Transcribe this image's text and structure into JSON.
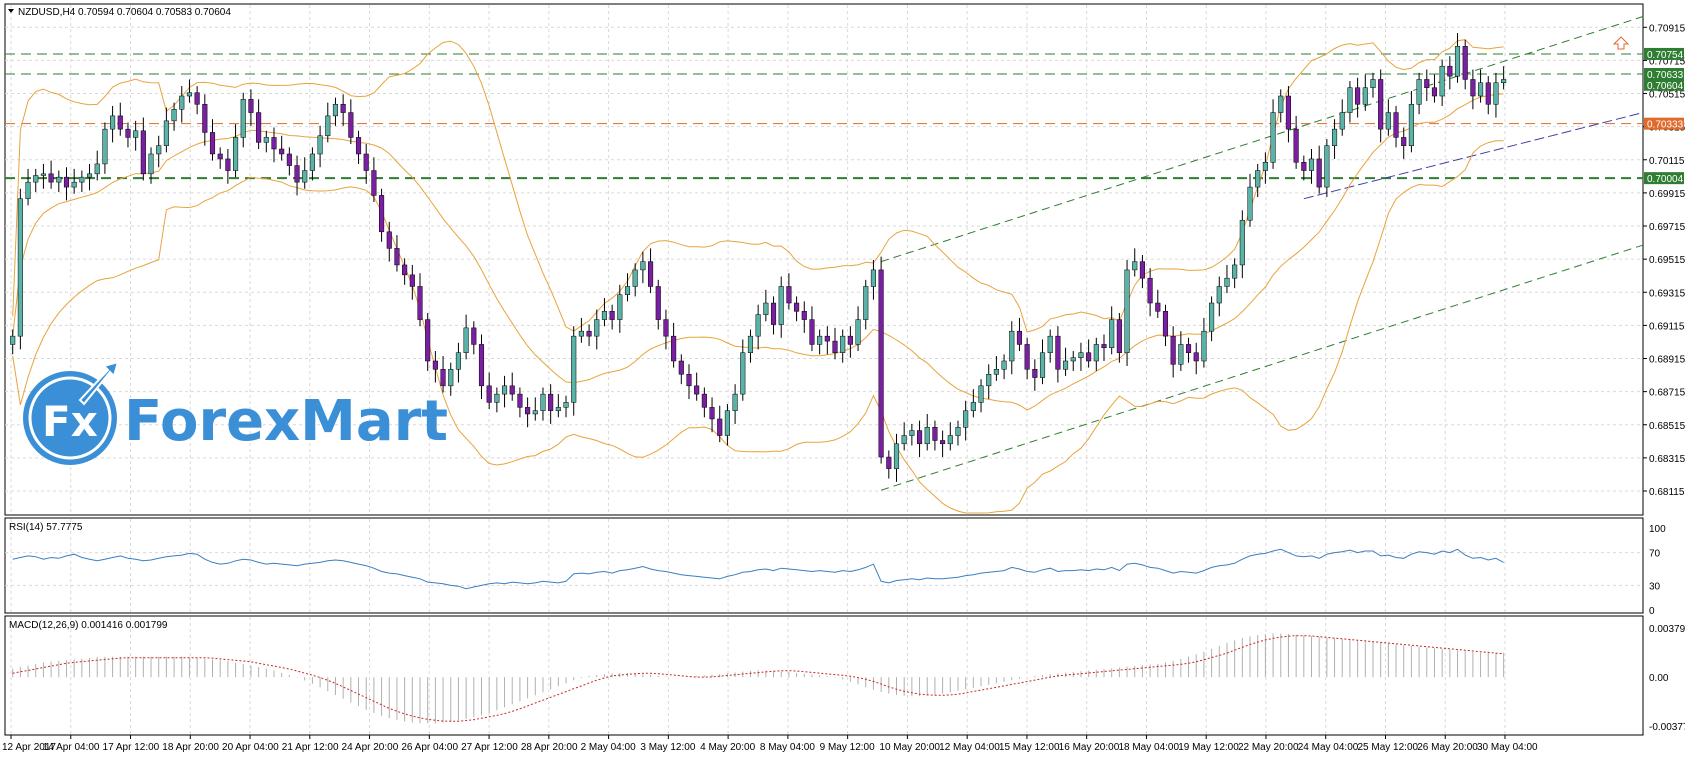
{
  "header": {
    "symbol_line": "NZDUSD,H4  0.70594 0.70604 0.70583 0.70604",
    "rsi_label": "RSI(14) 57.7775",
    "macd_label": "MACD(12,26,9) 0.001416 0.001799"
  },
  "logo": {
    "text": "ForexMart",
    "badge": "Fx"
  },
  "colors": {
    "bull": "#5bb3a8",
    "bear": "#7b1fa2",
    "bands": "#e8a33d",
    "channel": "#2e7d32",
    "hline_green": "#2e7d32",
    "hline_orange": "#e06a2c",
    "rsi": "#3a7fc1",
    "macd_signal": "#c62828",
    "histogram": "#b0b0b0",
    "grid": "#d9d9d9",
    "logo": "#3a8fd6",
    "tag_green": "#2e7d32",
    "tag_orange": "#e06a2c"
  },
  "price_axis": {
    "ticks": [
      "0.70915",
      "0.70715",
      "0.70515",
      "0.70315",
      "0.70115",
      "0.69915",
      "0.69715",
      "0.69515",
      "0.69315",
      "0.69115",
      "0.68915",
      "0.68715",
      "0.68515",
      "0.68315",
      "0.68115"
    ],
    "tags": [
      {
        "text": "0.70754",
        "value": 0.70754,
        "color": "#2e7d32"
      },
      {
        "text": "0.70633",
        "value": 0.70633,
        "color": "#2e7d32"
      },
      {
        "text": "0.70604",
        "value": 0.70604,
        "color": "#2e7d32"
      },
      {
        "text": "0.70333",
        "value": 0.70333,
        "color": "#e06a2c"
      },
      {
        "text": "0.70004",
        "value": 0.70004,
        "color": "#2e7d32"
      }
    ]
  },
  "rsi_axis": {
    "ticks": [
      "100",
      "70",
      "30",
      "0"
    ]
  },
  "macd_axis": {
    "ticks": [
      "0.003792",
      "0.00",
      "-0.00377"
    ]
  },
  "time_axis": [
    "12 Apr 2017",
    "14 Apr 04:00",
    "17 Apr 12:00",
    "18 Apr 20:00",
    "20 Apr 04:00",
    "21 Apr 12:00",
    "24 Apr 20:00",
    "26 Apr 04:00",
    "27 Apr 12:00",
    "28 Apr 20:00",
    "2 May 04:00",
    "3 May 12:00",
    "4 May 20:00",
    "8 May 04:00",
    "9 May 12:00",
    "10 May 20:00",
    "12 May 04:00",
    "15 May 12:00",
    "16 May 20:00",
    "18 May 04:00",
    "19 May 12:00",
    "22 May 20:00",
    "24 May 04:00",
    "25 May 12:00",
    "26 May 20:00",
    "30 May 04:00"
  ],
  "chart_data": {
    "type": "line",
    "title": "NZDUSD,H4",
    "price_range": [
      0.68115,
      0.70965
    ],
    "rsi_range": [
      0,
      100
    ],
    "macd_range": [
      -0.00377,
      0.003792
    ],
    "close": [
      0.6905,
      0.6988,
      0.6998,
      0.7002,
      0.7003,
      0.6998,
      0.7001,
      0.6995,
      0.6998,
      0.7001,
      0.7003,
      0.7009,
      0.703,
      0.7038,
      0.703,
      0.7025,
      0.7029,
      0.7003,
      0.7015,
      0.702,
      0.7035,
      0.7042,
      0.705,
      0.7052,
      0.7045,
      0.7028,
      0.7015,
      0.7012,
      0.7005,
      0.7025,
      0.7048,
      0.704,
      0.7022,
      0.7025,
      0.7018,
      0.7015,
      0.7008,
      0.6998,
      0.7005,
      0.7015,
      0.7026,
      0.7038,
      0.7045,
      0.704,
      0.7025,
      0.7015,
      0.7005,
      0.699,
      0.6968,
      0.6958,
      0.6948,
      0.6942,
      0.6935,
      0.6915,
      0.689,
      0.6885,
      0.6875,
      0.6885,
      0.6895,
      0.691,
      0.69,
      0.6875,
      0.6865,
      0.687,
      0.6875,
      0.687,
      0.6862,
      0.6858,
      0.686,
      0.687,
      0.686,
      0.6862,
      0.6865,
      0.6905,
      0.6908,
      0.6905,
      0.6915,
      0.692,
      0.6915,
      0.693,
      0.6935,
      0.6945,
      0.695,
      0.6935,
      0.6915,
      0.6905,
      0.689,
      0.6882,
      0.6875,
      0.687,
      0.6862,
      0.6855,
      0.6845,
      0.686,
      0.687,
      0.6895,
      0.6905,
      0.6918,
      0.6925,
      0.6912,
      0.6935,
      0.6925,
      0.692,
      0.6915,
      0.69,
      0.6905,
      0.6902,
      0.6895,
      0.6905,
      0.69,
      0.6915,
      0.6935,
      0.6945,
      0.6832,
      0.6825,
      0.684,
      0.6845,
      0.6848,
      0.684,
      0.685,
      0.6842,
      0.684,
      0.6845,
      0.685,
      0.686,
      0.6865,
      0.6875,
      0.6882,
      0.6885,
      0.689,
      0.6908,
      0.69,
      0.6885,
      0.688,
      0.6895,
      0.6905,
      0.6885,
      0.689,
      0.6892,
      0.6895,
      0.689,
      0.69,
      0.6898,
      0.6915,
      0.6895,
      0.6945,
      0.695,
      0.694,
      0.6925,
      0.692,
      0.6905,
      0.6888,
      0.69,
      0.6895,
      0.689,
      0.6908,
      0.6925,
      0.6935,
      0.694,
      0.6948,
      0.6975,
      0.6995,
      0.7005,
      0.701,
      0.704,
      0.705,
      0.703,
      0.701,
      0.7005,
      0.7012,
      0.6995,
      0.702,
      0.703,
      0.704,
      0.7055,
      0.7045,
      0.7055,
      0.706,
      0.703,
      0.704,
      0.7025,
      0.702,
      0.7045,
      0.706,
      0.7055,
      0.705,
      0.7068,
      0.7062,
      0.708,
      0.706,
      0.705,
      0.7058,
      0.7045,
      0.7058,
      0.706
    ],
    "rsi": [
      62,
      64,
      66,
      65,
      62,
      64,
      63,
      66,
      68,
      64,
      62,
      60,
      62,
      64,
      66,
      63,
      62,
      60,
      61,
      63,
      65,
      66,
      67,
      69,
      68,
      62,
      58,
      56,
      57,
      60,
      62,
      61,
      58,
      56,
      57,
      56,
      55,
      54,
      56,
      57,
      58,
      60,
      61,
      60,
      58,
      56,
      54,
      51,
      47,
      45,
      44,
      42,
      40,
      38,
      34,
      33,
      32,
      30,
      29,
      26,
      28,
      30,
      32,
      33,
      32,
      34,
      33,
      32,
      33,
      35,
      34,
      33,
      35,
      44,
      45,
      44,
      46,
      47,
      45,
      48,
      49,
      51,
      53,
      50,
      48,
      47,
      45,
      43,
      42,
      41,
      40,
      39,
      38,
      41,
      43,
      46,
      47,
      49,
      50,
      48,
      51,
      50,
      49,
      48,
      47,
      48,
      47,
      46,
      48,
      47,
      49,
      52,
      56,
      35,
      33,
      36,
      37,
      38,
      37,
      39,
      38,
      38,
      39,
      40,
      42,
      43,
      45,
      46,
      47,
      48,
      52,
      50,
      47,
      46,
      49,
      51,
      47,
      48,
      48,
      49,
      48,
      50,
      49,
      52,
      48,
      56,
      57,
      55,
      52,
      51,
      48,
      45,
      47,
      46,
      45,
      48,
      52,
      54,
      55,
      57,
      62,
      66,
      68,
      69,
      72,
      74,
      70,
      66,
      65,
      66,
      63,
      68,
      70,
      71,
      73,
      70,
      72,
      72,
      66,
      67,
      64,
      63,
      68,
      71,
      70,
      68,
      72,
      70,
      74,
      67,
      63,
      64,
      61,
      63,
      58
    ],
    "macd_signal": [
      0.0003,
      0.0005,
      0.0007,
      0.0009,
      0.0011,
      0.0012,
      0.0013,
      0.0014,
      0.0015,
      0.0015,
      0.0015,
      0.0015,
      0.0015,
      0.0015,
      0.0015,
      0.0014,
      0.0013,
      0.0012,
      0.001,
      0.0008,
      0.0006,
      0.0003,
      0.0,
      -0.0004,
      -0.0009,
      -0.0014,
      -0.0019,
      -0.0024,
      -0.0028,
      -0.0031,
      -0.0033,
      -0.0034,
      -0.0034,
      -0.0033,
      -0.0031,
      -0.0029,
      -0.0026,
      -0.0022,
      -0.0018,
      -0.0014,
      -0.001,
      -0.0006,
      -0.0002,
      0.0001,
      0.0002,
      0.0003,
      0.0003,
      0.0002,
      0.0001,
      0.0,
      0.0,
      0.0001,
      0.0002,
      0.0003,
      0.0004,
      0.0005,
      0.0005,
      0.0004,
      0.0003,
      0.0002,
      0.0001,
      -0.0001,
      -0.0004,
      -0.0008,
      -0.0011,
      -0.0013,
      -0.0014,
      -0.0014,
      -0.0013,
      -0.0011,
      -0.0009,
      -0.0007,
      -0.0005,
      -0.0003,
      -0.0001,
      0.0001,
      0.0002,
      0.0003,
      0.0004,
      0.0005,
      0.0006,
      0.0007,
      0.0008,
      0.0009,
      0.001,
      0.0012,
      0.0015,
      0.0018,
      0.0022,
      0.0026,
      0.0029,
      0.0031,
      0.0032,
      0.0032,
      0.0031,
      0.003,
      0.0029,
      0.0028,
      0.0027,
      0.0026,
      0.0025,
      0.0024,
      0.0023,
      0.0022,
      0.0021,
      0.002,
      0.0019,
      0.0018
    ],
    "support_resistance": [
      0.70754,
      0.70633,
      0.70333,
      0.70004
    ],
    "legend": "none",
    "grid": true
  }
}
